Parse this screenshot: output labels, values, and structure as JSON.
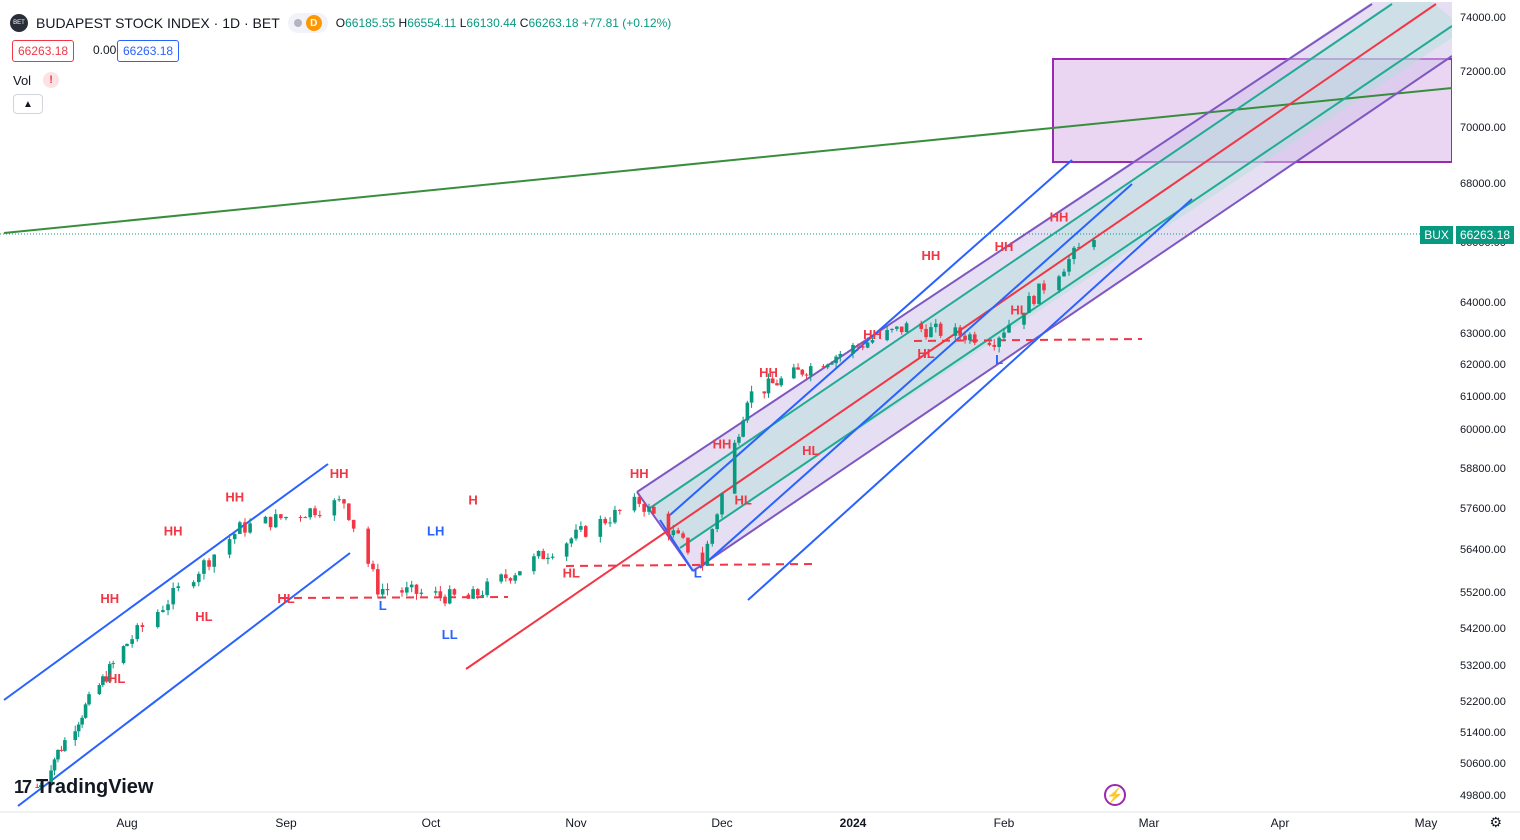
{
  "header": {
    "logo_text": "BET",
    "title": "BUDAPEST STOCK INDEX · 1D · BET",
    "d_badge": "D",
    "o_label": "O",
    "o_value": "66185.55",
    "h_label": "H",
    "h_value": "66554.11",
    "l_label": "L",
    "l_value": "66130.44",
    "c_label": "C",
    "c_value": "66263.18",
    "change": "+77.81 (+0.12%)"
  },
  "price_boxes": {
    "bid": "66263.18",
    "spread": "0.00",
    "ask": "66263.18"
  },
  "vol": {
    "label": "Vol",
    "warning": "!"
  },
  "collapse_icon": "chevron-up-icon",
  "branding": {
    "mark": "17",
    "name": "TradingView"
  },
  "last_tag": {
    "symbol": "BUX",
    "price": "66263.18"
  },
  "icons": {
    "bolt": "bolt-icon",
    "gear": "gear-icon"
  },
  "colors": {
    "up": "#089981",
    "down": "#f23645",
    "blue": "#2962ff",
    "purple": "#9c27b0",
    "green_line": "#388e3c",
    "red_line": "#f23645",
    "teal": "#22ab94"
  },
  "chart_data": {
    "type": "candlestick",
    "symbol": "BUX",
    "timeframe": "1D",
    "x_ticks": [
      "Aug",
      "Sep",
      "Oct",
      "Nov",
      "Dec",
      "2024",
      "Feb",
      "Mar",
      "Apr",
      "May"
    ],
    "y_ticks": [
      49800,
      50600,
      51400,
      52200,
      53200,
      54200,
      55200,
      56400,
      57600,
      58800,
      60000,
      61000,
      62000,
      63000,
      64000,
      66000,
      68000,
      70000,
      72000,
      74000
    ],
    "y_tick_labels": [
      "49800.00",
      "50600.00",
      "51400.00",
      "52200.00",
      "53200.00",
      "54200.00",
      "55200.00",
      "56400.00",
      "57600.00",
      "58800.00",
      "60000.00",
      "61000.00",
      "62000.00",
      "63000.00",
      "64000.00",
      "66000.00",
      "68000.00",
      "70000.00",
      "72000.00",
      "74000.00"
    ],
    "ylim": [
      49300,
      74300
    ],
    "y_scale": "log",
    "last_price": 66263.18,
    "key_points": [
      {
        "date": "2023-07-06",
        "close": 50000
      },
      {
        "date": "2023-08-23",
        "close": 57000
      },
      {
        "date": "2023-09-13",
        "close": 57800
      },
      {
        "date": "2023-09-20",
        "close": 55300
      },
      {
        "date": "2023-10-09",
        "close": 55000
      },
      {
        "date": "2023-11-14",
        "close": 57800
      },
      {
        "date": "2023-11-27",
        "close": 56000
      },
      {
        "date": "2023-12-07",
        "close": 61000
      },
      {
        "date": "2024-01-12",
        "close": 63200
      },
      {
        "date": "2024-01-30",
        "close": 62800
      },
      {
        "date": "2024-02-19",
        "close": 66263
      }
    ],
    "annotations": [
      {
        "text": "HH",
        "date": "2023-07-27",
        "price": 54900,
        "color": "#f23645"
      },
      {
        "text": "HL",
        "date": "2023-07-29",
        "price": 52700,
        "color": "#f23645"
      },
      {
        "text": "HH",
        "date": "2023-08-10",
        "price": 56800,
        "color": "#f23645"
      },
      {
        "text": "HL",
        "date": "2023-08-16",
        "price": 54400,
        "color": "#f23645"
      },
      {
        "text": "HH",
        "date": "2023-08-22",
        "price": 57800,
        "color": "#f23645"
      },
      {
        "text": "HL",
        "date": "2023-09-01",
        "price": 54900,
        "color": "#f23645"
      },
      {
        "text": "HH",
        "date": "2023-09-12",
        "price": 58500,
        "color": "#f23645"
      },
      {
        "text": "L",
        "date": "2023-09-21",
        "price": 54700,
        "color": "#2962ff"
      },
      {
        "text": "LH",
        "date": "2023-10-02",
        "price": 56800,
        "color": "#2962ff"
      },
      {
        "text": "LL",
        "date": "2023-10-05",
        "price": 53900,
        "color": "#2962ff"
      },
      {
        "text": "H",
        "date": "2023-10-10",
        "price": 57700,
        "color": "#f23645"
      },
      {
        "text": "HL",
        "date": "2023-10-31",
        "price": 55600,
        "color": "#f23645"
      },
      {
        "text": "HH",
        "date": "2023-11-14",
        "price": 58500,
        "color": "#f23645"
      },
      {
        "text": "L",
        "date": "2023-11-26",
        "price": 55600,
        "color": "#2962ff"
      },
      {
        "text": "HH",
        "date": "2023-12-01",
        "price": 59400,
        "color": "#f23645"
      },
      {
        "text": "HL",
        "date": "2023-12-06",
        "price": 57700,
        "color": "#f23645"
      },
      {
        "text": "HH",
        "date": "2023-12-12",
        "price": 61600,
        "color": "#f23645"
      },
      {
        "text": "HL",
        "date": "2023-12-22",
        "price": 59200,
        "color": "#f23645"
      },
      {
        "text": "HH",
        "date": "2024-01-05",
        "price": 62800,
        "color": "#f23645"
      },
      {
        "text": "HL",
        "date": "2024-01-16",
        "price": 62200,
        "color": "#f23645"
      },
      {
        "text": "HH",
        "date": "2024-01-17",
        "price": 65400,
        "color": "#f23645"
      },
      {
        "text": "L",
        "date": "2024-01-31",
        "price": 62000,
        "color": "#2962ff"
      },
      {
        "text": "HH",
        "date": "2024-02-01",
        "price": 65700,
        "color": "#f23645"
      },
      {
        "text": "HL",
        "date": "2024-02-04",
        "price": 63600,
        "color": "#f23645"
      },
      {
        "text": "HH",
        "date": "2024-02-12",
        "price": 66700,
        "color": "#f23645"
      }
    ]
  }
}
